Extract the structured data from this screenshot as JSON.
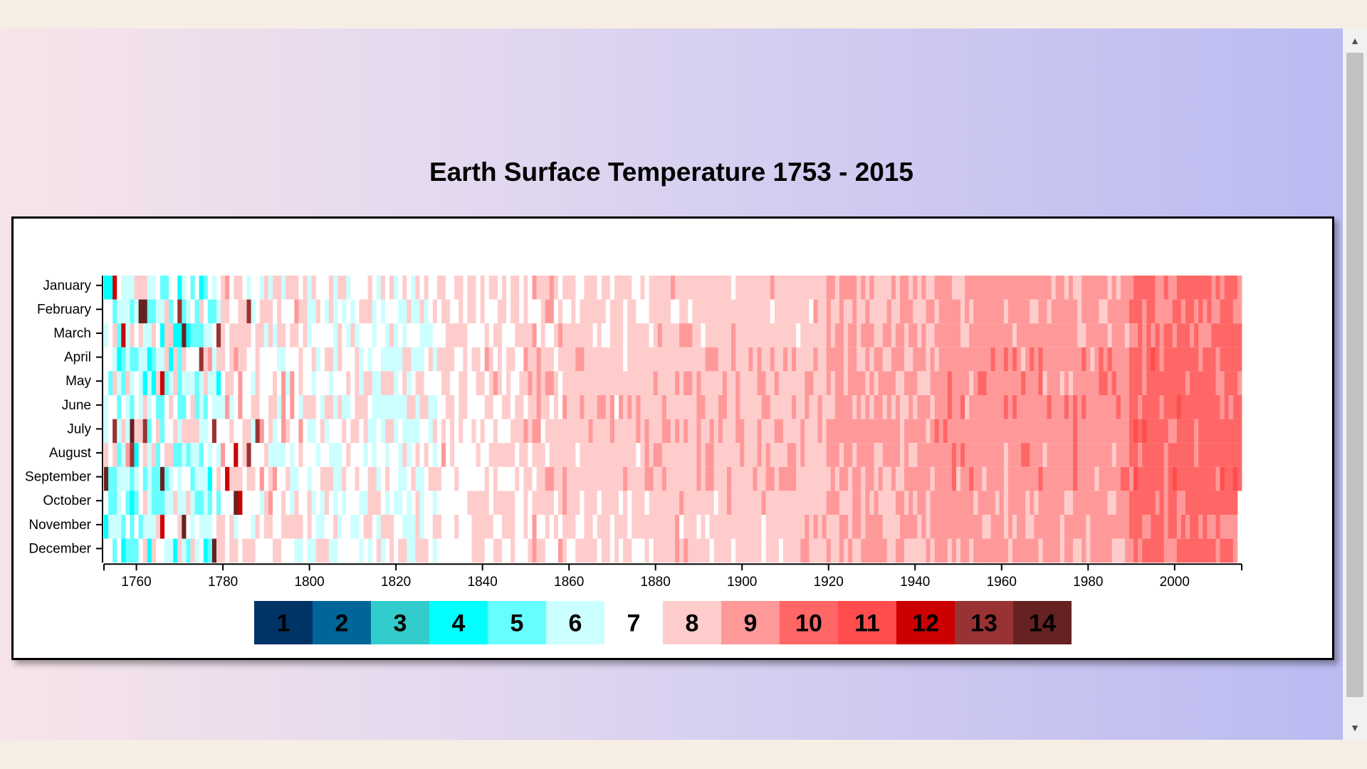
{
  "page": {
    "title": "Earth Surface Temperature 1753 - 2015"
  },
  "chart_data": {
    "type": "heatmap",
    "title": "Earth Surface Temperature 1753 - 2015",
    "x_range": [
      1753,
      2015
    ],
    "x_ticks": [
      1760,
      1780,
      1800,
      1820,
      1840,
      1860,
      1880,
      1900,
      1920,
      1940,
      1960,
      1980,
      2000
    ],
    "months": [
      "January",
      "February",
      "March",
      "April",
      "May",
      "June",
      "July",
      "August",
      "September",
      "October",
      "November",
      "December"
    ],
    "legend": {
      "labels": [
        "1",
        "2",
        "3",
        "4",
        "5",
        "6",
        "7",
        "8",
        "9",
        "10",
        "11",
        "12",
        "13",
        "14"
      ],
      "colors": [
        "#003366",
        "#006699",
        "#33cccc",
        "#00ffff",
        "#66ffff",
        "#ccffff",
        "#ffffff",
        "#ffcccc",
        "#ff9999",
        "#ff6666",
        "#ff4d4d",
        "#cc0000",
        "#993333",
        "#662222"
      ]
    }
  },
  "scrollbar": {
    "up_icon": "triangle-up-icon",
    "down_icon": "triangle-down-icon"
  }
}
